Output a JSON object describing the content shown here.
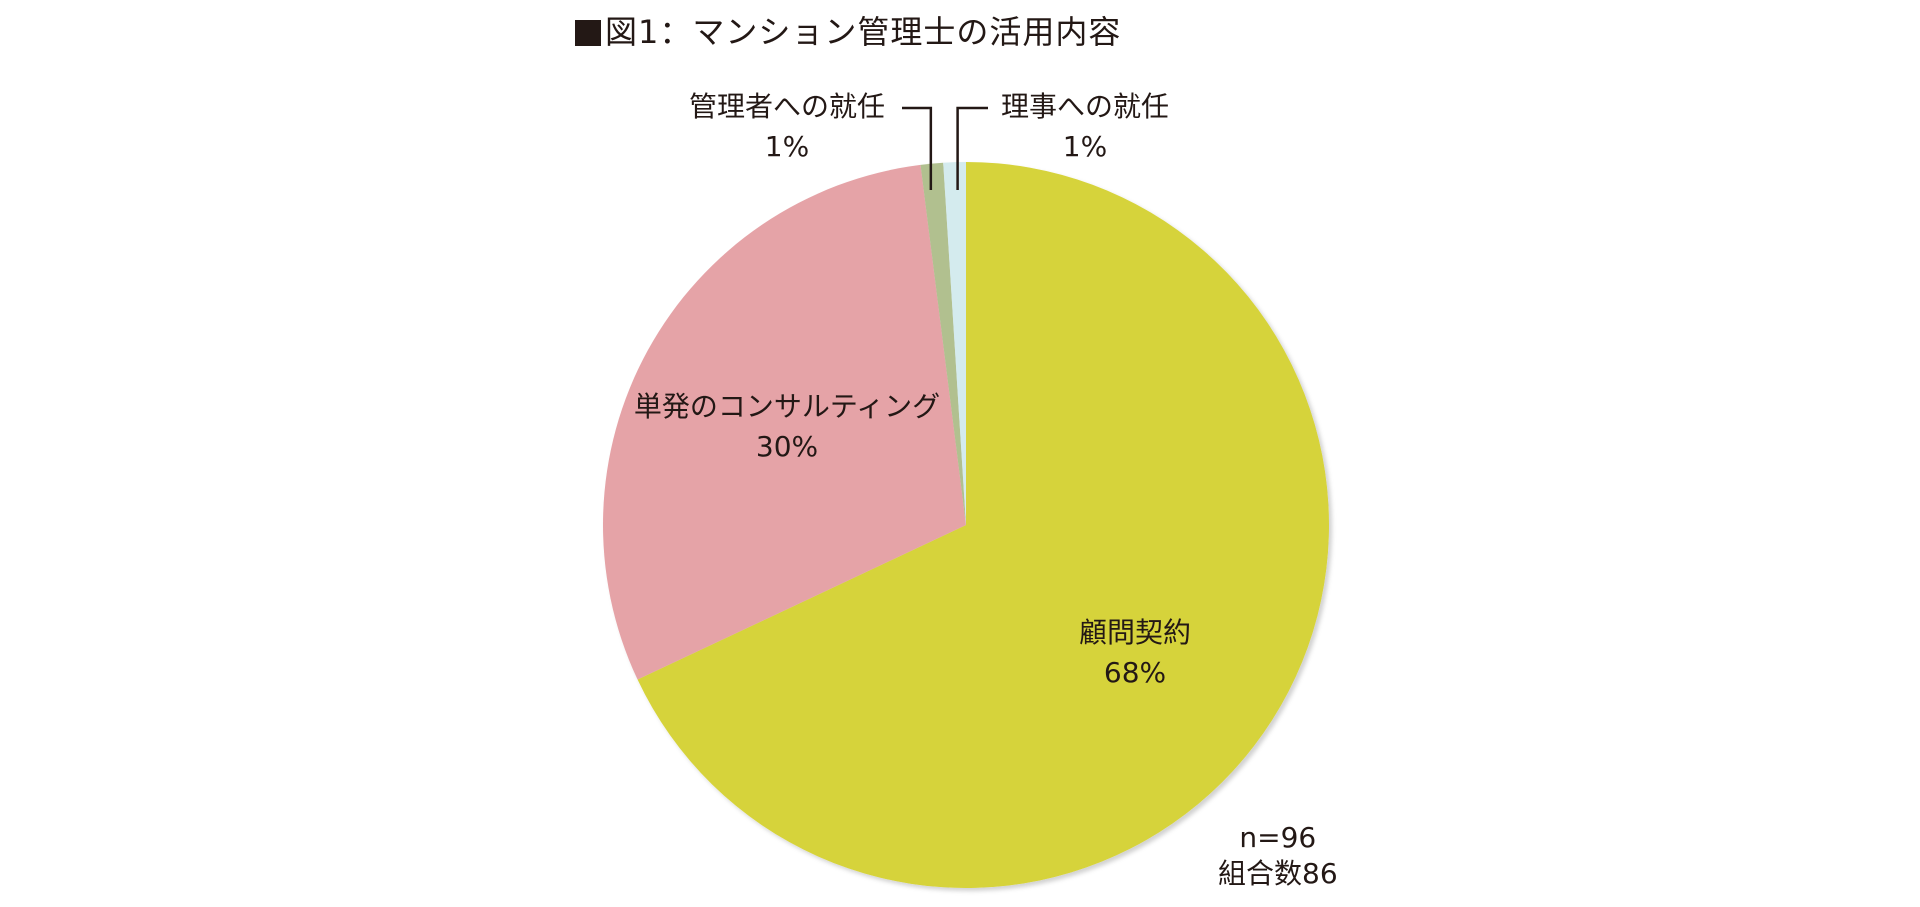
{
  "title": "図1：マンション管理士の活用内容",
  "chart_data": {
    "type": "pie",
    "title": "図1：マンション管理士の活用内容",
    "slices": [
      {
        "name": "顧問契約",
        "label": "顧問契約",
        "percent_label": "68%",
        "value": 68,
        "color": "#d6d33a"
      },
      {
        "name": "単発のコンサルティング",
        "label": "単発のコンサルティング",
        "percent_label": "30%",
        "value": 30,
        "color": "#e5a3a7"
      },
      {
        "name": "管理者への就任",
        "label": "管理者への就任",
        "percent_label": "1%",
        "value": 1,
        "color": "#b1c08f"
      },
      {
        "name": "理事への就任",
        "label": "理事への就任",
        "percent_label": "1%",
        "value": 1,
        "color": "#d4ebee"
      }
    ],
    "start": "12 o'clock",
    "direction": "clockwise"
  },
  "notes": {
    "n": "n=96",
    "groups": "組合数86"
  }
}
